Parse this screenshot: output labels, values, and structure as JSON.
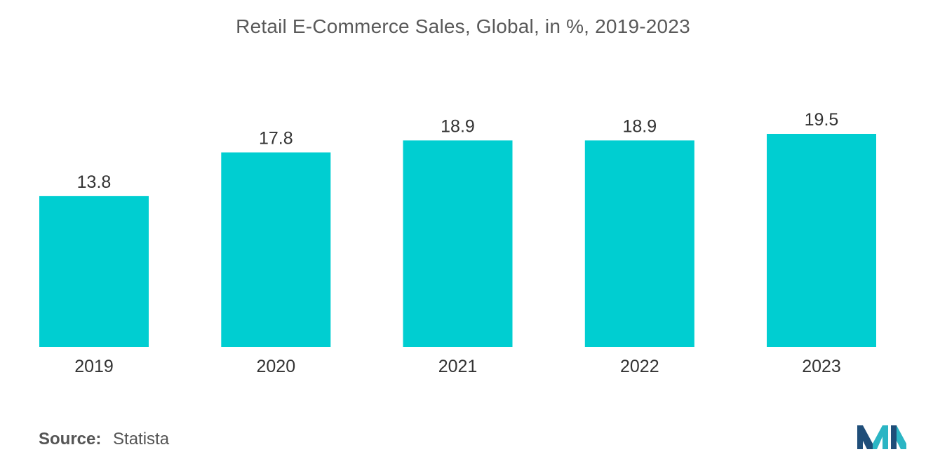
{
  "chart_data": {
    "type": "bar",
    "title": "Retail E-Commerce Sales, Global, in %, 2019-2023",
    "categories": [
      "2019",
      "2020",
      "2021",
      "2022",
      "2023"
    ],
    "values": [
      13.8,
      17.8,
      18.9,
      18.9,
      19.5
    ],
    "value_labels": [
      "13.8",
      "17.8",
      "18.9",
      "18.9",
      "19.5"
    ],
    "xlabel": "",
    "ylabel": "",
    "ylim": [
      0,
      19.5
    ],
    "grid": false,
    "legend": "none",
    "bar_color": "#00CED1"
  },
  "source": {
    "label": "Source:",
    "value": "Statista"
  },
  "logo": {
    "icon": "mordor-intelligence-logo",
    "colors": [
      "#1f4e79",
      "#2bb5c4"
    ]
  }
}
